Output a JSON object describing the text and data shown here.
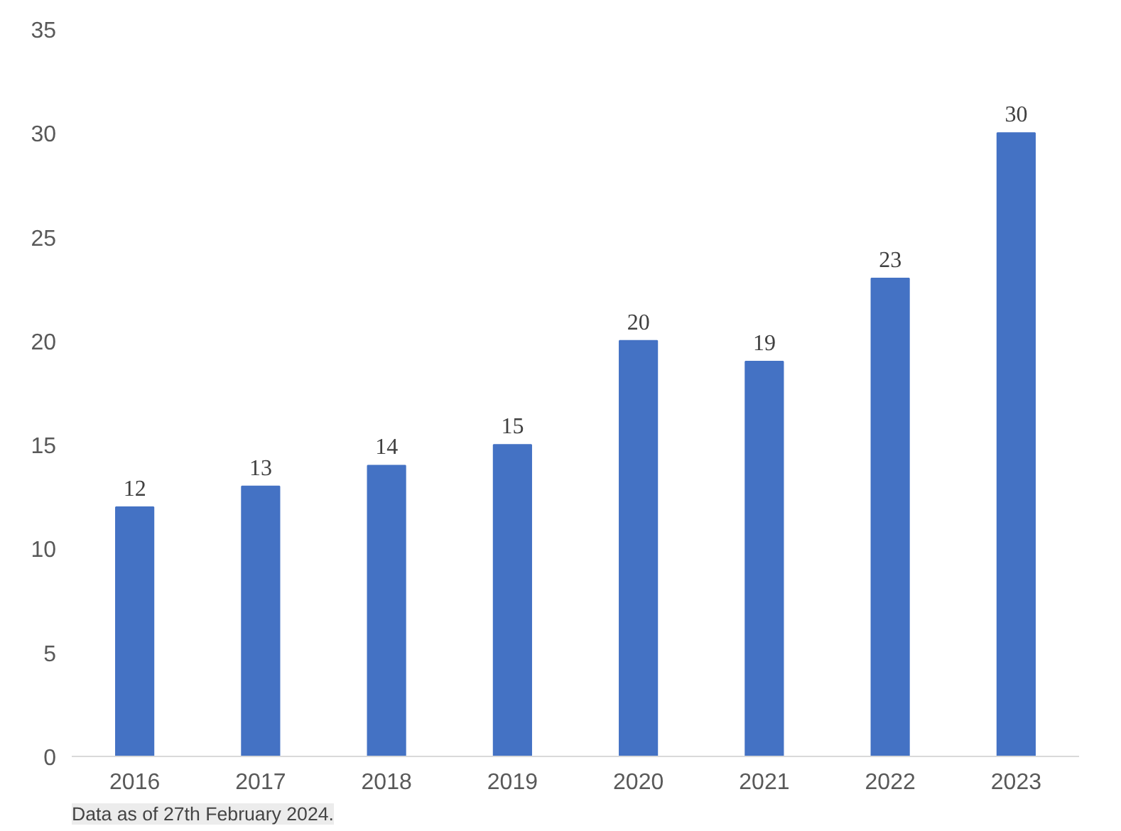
{
  "chart_data": {
    "type": "bar",
    "categories": [
      "2016",
      "2017",
      "2018",
      "2019",
      "2020",
      "2021",
      "2022",
      "2023"
    ],
    "values": [
      12,
      13,
      14,
      15,
      20,
      19,
      23,
      30
    ],
    "color": "#4472c4",
    "ylim": [
      0,
      35
    ],
    "yticks": [
      0,
      5,
      10,
      15,
      20,
      25,
      30,
      35
    ],
    "grid": false,
    "data_labels": true,
    "annotations": [
      "Data as of 27th February 2024."
    ]
  }
}
